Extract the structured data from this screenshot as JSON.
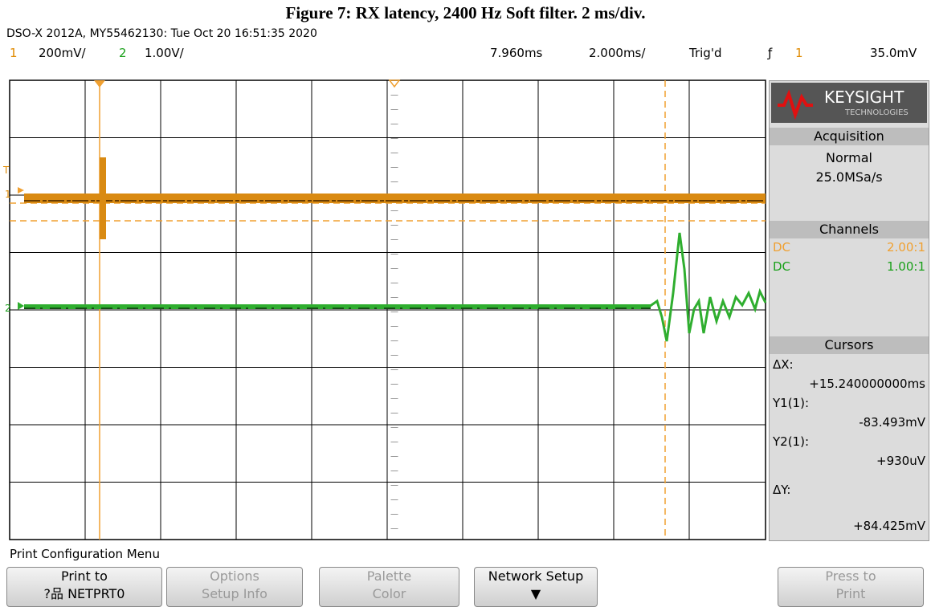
{
  "caption": "Figure 7: RX latency, 2400 Hz Soft filter.  2 ms/div.",
  "header": "DSO-X 2012A, MY55462130: Tue Oct 20 16:51:35 2020",
  "status": {
    "ch1": "1",
    "ch1_scale": "200mV/",
    "ch2": "2",
    "ch2_scale": "1.00V/",
    "delay": "7.960ms",
    "timebase": "2.000ms/",
    "trigger_state": "Trig'd",
    "trigger_source": "1",
    "trigger_level": "35.0mV"
  },
  "markers": {
    "ch1_trigger": "T",
    "ch1": "1",
    "ch2": "2"
  },
  "panel": {
    "brand": "KEYSIGHT",
    "brand_sub": "TECHNOLOGIES",
    "acquisition": {
      "title": "Acquisition",
      "mode": "Normal",
      "rate": "25.0MSa/s"
    },
    "channels": {
      "title": "Channels",
      "rows": [
        [
          "DC",
          "2.00:1"
        ],
        [
          "DC",
          "1.00:1"
        ]
      ]
    },
    "cursors": {
      "title": "Cursors",
      "dx_label": "ΔX:",
      "dx": "+15.240000000ms",
      "y1_label": "Y1(1):",
      "y1": "-83.493mV",
      "y2_label": "Y2(1):",
      "y2": "+930uV",
      "dy_label": "ΔY:",
      "dy": "+84.425mV"
    }
  },
  "menu": {
    "title": "Print Configuration Menu",
    "buttons": [
      [
        "Print to",
        "?品 NETPRT0"
      ],
      [
        "Options",
        "Setup Info"
      ],
      [
        "Palette",
        "Color"
      ],
      [
        "Network Setup"
      ],
      [
        "Press to",
        "Print"
      ]
    ]
  }
}
